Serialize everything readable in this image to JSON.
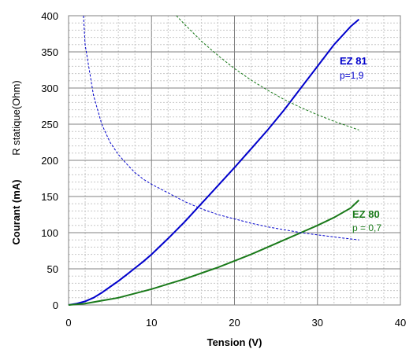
{
  "chart_data": {
    "type": "line",
    "xlabel": "Tension (V)",
    "ylabel": "Courant (mA)",
    "ylabel_secondary": "R statique(Ohm)",
    "xlim": [
      0,
      40
    ],
    "ylim": [
      0,
      400
    ],
    "xticks": [
      "0",
      "10",
      "20",
      "30",
      "40"
    ],
    "yticks": [
      "0",
      "50",
      "100",
      "150",
      "200",
      "250",
      "300",
      "350",
      "400"
    ],
    "grid": {
      "major": true,
      "minor": true
    },
    "legend": "none",
    "series": [
      {
        "name": "EZ 81",
        "note": "p=1,9",
        "kind": "current",
        "color": "#0000cc",
        "style": "solid",
        "points": [
          [
            0,
            0
          ],
          [
            1,
            2
          ],
          [
            2,
            5
          ],
          [
            3,
            10
          ],
          [
            4,
            17
          ],
          [
            5,
            25
          ],
          [
            6,
            33
          ],
          [
            7,
            42
          ],
          [
            8,
            51
          ],
          [
            9,
            60
          ],
          [
            10,
            70
          ],
          [
            12,
            92
          ],
          [
            14,
            115
          ],
          [
            16,
            140
          ],
          [
            18,
            165
          ],
          [
            20,
            190
          ],
          [
            22,
            216
          ],
          [
            24,
            242
          ],
          [
            26,
            270
          ],
          [
            28,
            300
          ],
          [
            30,
            330
          ],
          [
            32,
            360
          ],
          [
            34,
            385
          ],
          [
            35,
            395
          ]
        ]
      },
      {
        "name": "EZ 80",
        "note": "p = 0,7",
        "kind": "current",
        "color": "#1a7a1a",
        "style": "solid",
        "points": [
          [
            0,
            0
          ],
          [
            2,
            2
          ],
          [
            4,
            6
          ],
          [
            6,
            10
          ],
          [
            8,
            16
          ],
          [
            10,
            22
          ],
          [
            12,
            29
          ],
          [
            14,
            36
          ],
          [
            16,
            44
          ],
          [
            18,
            52
          ],
          [
            20,
            61
          ],
          [
            22,
            70
          ],
          [
            24,
            80
          ],
          [
            26,
            90
          ],
          [
            28,
            100
          ],
          [
            30,
            110
          ],
          [
            32,
            121
          ],
          [
            34,
            134
          ],
          [
            35,
            145
          ]
        ]
      },
      {
        "kind": "resistance",
        "color": "#0000cc",
        "style": "dashed",
        "points": [
          [
            1.8,
            400
          ],
          [
            2,
            360
          ],
          [
            3,
            290
          ],
          [
            4,
            250
          ],
          [
            5,
            225
          ],
          [
            6,
            208
          ],
          [
            7,
            195
          ],
          [
            8,
            183
          ],
          [
            9,
            174
          ],
          [
            10,
            167
          ],
          [
            12,
            155
          ],
          [
            14,
            143
          ],
          [
            16,
            133
          ],
          [
            18,
            125
          ],
          [
            20,
            119
          ],
          [
            22,
            113
          ],
          [
            24,
            108
          ],
          [
            26,
            104
          ],
          [
            28,
            100
          ],
          [
            30,
            97
          ],
          [
            32,
            94
          ],
          [
            35,
            90
          ]
        ]
      },
      {
        "kind": "resistance",
        "color": "#1a7a1a",
        "style": "dashed",
        "points": [
          [
            13,
            400
          ],
          [
            14,
            388
          ],
          [
            16,
            365
          ],
          [
            18,
            345
          ],
          [
            20,
            327
          ],
          [
            22,
            311
          ],
          [
            24,
            297
          ],
          [
            26,
            284
          ],
          [
            28,
            273
          ],
          [
            30,
            263
          ],
          [
            32,
            254
          ],
          [
            35,
            242
          ]
        ]
      }
    ]
  }
}
